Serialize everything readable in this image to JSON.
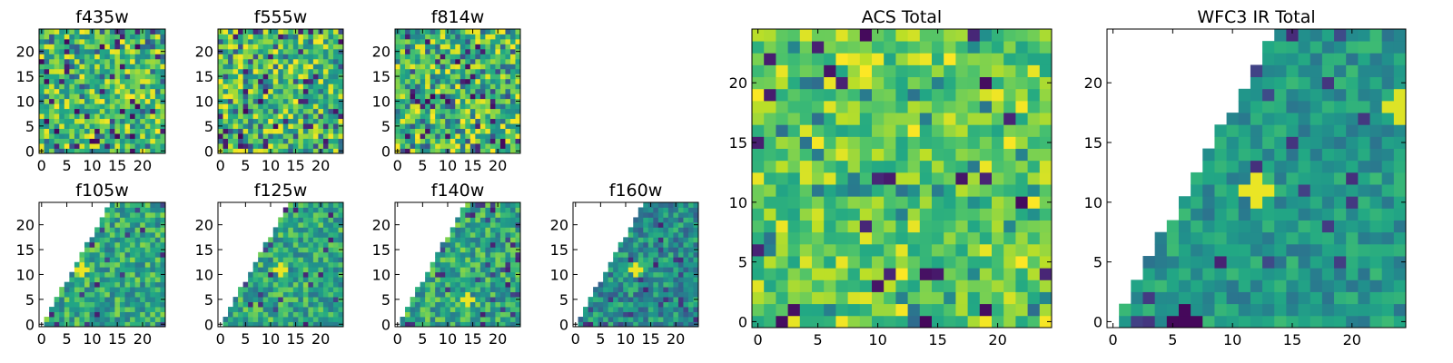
{
  "chart_data": [
    {
      "type": "heatmap",
      "title": "f435w",
      "colormap": "viridis",
      "grid_size": 25,
      "xlim": [
        -0.5,
        24.5
      ],
      "ylim": [
        -0.5,
        24.5
      ],
      "xticks": [
        0,
        5,
        10,
        15,
        20
      ],
      "yticks": [
        0,
        5,
        10,
        15,
        20
      ],
      "seed": 11,
      "wedge": false,
      "style": "noise"
    },
    {
      "type": "heatmap",
      "title": "f555w",
      "colormap": "viridis",
      "grid_size": 25,
      "xlim": [
        -0.5,
        24.5
      ],
      "ylim": [
        -0.5,
        24.5
      ],
      "xticks": [
        0,
        5,
        10,
        15,
        20
      ],
      "yticks": [
        0,
        5,
        10,
        15,
        20
      ],
      "seed": 23,
      "wedge": false,
      "style": "noise"
    },
    {
      "type": "heatmap",
      "title": "f814w",
      "colormap": "viridis",
      "grid_size": 25,
      "xlim": [
        -0.5,
        24.5
      ],
      "ylim": [
        -0.5,
        24.5
      ],
      "xticks": [
        0,
        5,
        10,
        15,
        20
      ],
      "yticks": [
        0,
        5,
        10,
        15,
        20
      ],
      "seed": 37,
      "wedge": false,
      "style": "noise"
    },
    {
      "type": "heatmap",
      "title": "f105w",
      "colormap": "viridis",
      "grid_size": 25,
      "xlim": [
        -0.5,
        24.5
      ],
      "ylim": [
        -0.5,
        24.5
      ],
      "xticks": [
        0,
        5,
        10,
        15,
        20
      ],
      "yticks": [
        0,
        5,
        10,
        15,
        20
      ],
      "seed": 41,
      "wedge": true,
      "style": "ir",
      "bright_spot": [
        8,
        11
      ]
    },
    {
      "type": "heatmap",
      "title": "f125w",
      "colormap": "viridis",
      "grid_size": 25,
      "xlim": [
        -0.5,
        24.5
      ],
      "ylim": [
        -0.5,
        24.5
      ],
      "xticks": [
        0,
        5,
        10,
        15,
        20
      ],
      "yticks": [
        0,
        5,
        10,
        15,
        20
      ],
      "seed": 53,
      "wedge": true,
      "style": "ir",
      "bright_spot": [
        12,
        11
      ]
    },
    {
      "type": "heatmap",
      "title": "f140w",
      "colormap": "viridis",
      "grid_size": 25,
      "xlim": [
        -0.5,
        24.5
      ],
      "ylim": [
        -0.5,
        24.5
      ],
      "xticks": [
        0,
        5,
        10,
        15,
        20
      ],
      "yticks": [
        0,
        5,
        10,
        15,
        20
      ],
      "seed": 67,
      "wedge": true,
      "style": "ir",
      "bright_spot": [
        14,
        5
      ]
    },
    {
      "type": "heatmap",
      "title": "f160w",
      "colormap": "viridis",
      "grid_size": 25,
      "xlim": [
        -0.5,
        24.5
      ],
      "ylim": [
        -0.5,
        24.5
      ],
      "xticks": [
        0,
        5,
        10,
        15,
        20
      ],
      "yticks": [
        0,
        5,
        10,
        15,
        20
      ],
      "seed": 79,
      "wedge": true,
      "style": "ir_dark",
      "bright_spot": [
        12,
        11
      ]
    },
    {
      "type": "heatmap",
      "title": "ACS Total",
      "colormap": "viridis",
      "grid_size": 25,
      "xlim": [
        -0.5,
        24.5
      ],
      "ylim": [
        -0.5,
        24.5
      ],
      "xticks": [
        0,
        5,
        10,
        15,
        20
      ],
      "yticks": [
        0,
        5,
        10,
        15,
        20
      ],
      "seed": 97,
      "wedge": false,
      "style": "total"
    },
    {
      "type": "heatmap",
      "title": "WFC3 IR Total",
      "colormap": "viridis",
      "grid_size": 25,
      "xlim": [
        -0.5,
        24.5
      ],
      "ylim": [
        -0.5,
        24.5
      ],
      "xticks": [
        0,
        5,
        10,
        15,
        20
      ],
      "yticks": [
        0,
        5,
        10,
        15,
        20
      ],
      "seed": 103,
      "wedge": true,
      "style": "ir_total",
      "bright_spot": [
        12,
        11
      ],
      "bright_spot2": [
        24,
        18
      ],
      "dark_spot": [
        6,
        0
      ]
    }
  ]
}
